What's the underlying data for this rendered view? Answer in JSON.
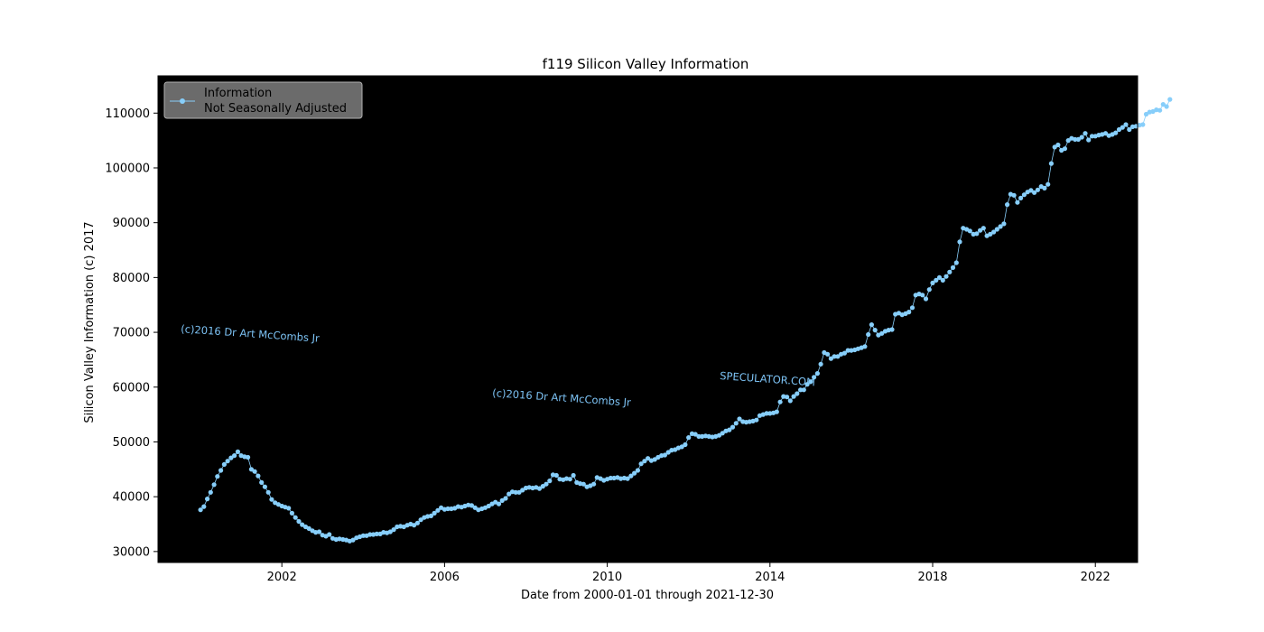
{
  "chart_data": {
    "type": "line",
    "title": "f119 Silicon Valley Information",
    "xlabel": "Date from 2000-01-01 through 2021-12-30",
    "ylabel": "Silicon Valley Information (c) 2017",
    "x_range": [
      "1998-12-15",
      "2023-01-15"
    ],
    "ylim": [
      28000,
      116800
    ],
    "x_ticks": [
      "2002",
      "2006",
      "2010",
      "2014",
      "2018",
      "2022"
    ],
    "y_ticks": [
      30000,
      40000,
      50000,
      60000,
      70000,
      80000,
      90000,
      100000,
      110000
    ],
    "grid": false,
    "background": "#000000",
    "series_color": "#87cefa",
    "legend": {
      "placement": "top-left",
      "entries": [
        "Information",
        "Not Seasonally Adjusted"
      ]
    },
    "watermarks": [
      "(c)2016 Dr Art McCombs Jr",
      "(c)2016 Dr Art McCombs Jr",
      "SPECULATOR.COM"
    ],
    "series": [
      {
        "name": "Information",
        "start": "2000-01",
        "frequency": "monthly",
        "values": [
          37600,
          38200,
          39600,
          40800,
          42200,
          43700,
          44800,
          45900,
          46500,
          47100,
          47500,
          48200,
          47500,
          47300,
          47200,
          45000,
          44600,
          43800,
          42600,
          41800,
          40800,
          39500,
          38900,
          38600,
          38300,
          38100,
          37900,
          37000,
          36200,
          35500,
          34900,
          34500,
          34200,
          33800,
          33500,
          33600,
          33000,
          32800,
          33100,
          32400,
          32200,
          32300,
          32200,
          32100,
          31900,
          32100,
          32500,
          32700,
          32900,
          32900,
          33100,
          33100,
          33200,
          33200,
          33500,
          33400,
          33600,
          34000,
          34500,
          34600,
          34500,
          34800,
          35000,
          34800,
          35200,
          35800,
          36200,
          36400,
          36500,
          37000,
          37500,
          38000,
          37700,
          37800,
          37800,
          37900,
          38200,
          38100,
          38300,
          38500,
          38400,
          38000,
          37600,
          37800,
          38000,
          38300,
          38700,
          39000,
          38700,
          39300,
          39700,
          40500,
          40900,
          40800,
          40800,
          41200,
          41600,
          41700,
          41600,
          41700,
          41500,
          41900,
          42300,
          42900,
          44000,
          43900,
          43200,
          43100,
          43300,
          43200,
          43900,
          42600,
          42400,
          42300,
          41800,
          42000,
          42300,
          43500,
          43300,
          43000,
          43200,
          43400,
          43400,
          43500,
          43300,
          43400,
          43300,
          43800,
          44300,
          44800,
          46000,
          46500,
          47000,
          46600,
          46800,
          47200,
          47500,
          47600,
          48100,
          48500,
          48600,
          48900,
          49100,
          49500,
          50800,
          51500,
          51400,
          51000,
          51000,
          51100,
          51000,
          50900,
          51000,
          51200,
          51600,
          52000,
          52200,
          52700,
          53400,
          54200,
          53700,
          53600,
          53700,
          53800,
          54000,
          54800,
          55000,
          55200,
          55200,
          55300,
          55500,
          57300,
          58300,
          58200,
          57500,
          58300,
          58800,
          59500,
          59500,
          60500,
          61000,
          61800,
          62500,
          64200,
          66300,
          66000,
          65200,
          65600,
          65600,
          66000,
          66200,
          66700,
          66700,
          66800,
          67000,
          67200,
          67400,
          69600,
          71400,
          70400,
          69500,
          69800,
          70200,
          70400,
          70500,
          73300,
          73500,
          73200,
          73400,
          73700,
          74500,
          76800,
          77000,
          76800,
          76100,
          77800,
          79000,
          79500,
          80000,
          79500,
          80200,
          81000,
          81800,
          82700,
          86500,
          89000,
          88800,
          88500,
          87900,
          88000,
          88600,
          89000,
          87600,
          87900,
          88300,
          88800,
          89300,
          89800,
          93300,
          95200,
          95000,
          93700,
          94500,
          95100,
          95600,
          95900,
          95500,
          96000,
          96600,
          96300,
          97000,
          100800,
          103800,
          104200,
          103200,
          103500,
          105000,
          105400,
          105200,
          105200,
          105600,
          106300,
          105100,
          105800,
          105800,
          106000,
          106100,
          106300,
          105900,
          106100,
          106400,
          107000,
          107400,
          107900,
          107000,
          107500,
          107600,
          107800,
          107900,
          109800,
          110200,
          110300,
          110600,
          110500,
          111600,
          111200,
          112500
        ]
      }
    ]
  }
}
